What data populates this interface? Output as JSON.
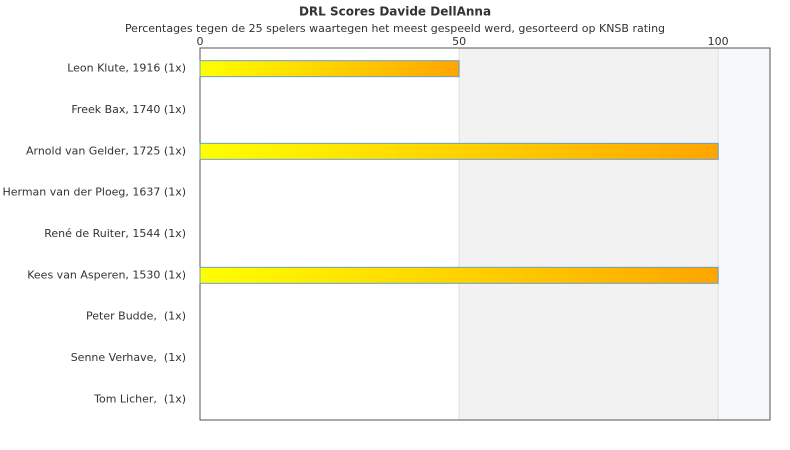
{
  "chart_data": {
    "type": "bar",
    "orientation": "horizontal",
    "title": "DRL Scores Davide DellAnna",
    "subtitle": "Percentages tegen de 25 spelers waartegen het meest gespeeld werd, gesorteerd op KNSB rating",
    "categories": [
      "Leon Klute, 1916 (1x)",
      "Freek Bax, 1740 (1x)",
      "Arnold van Gelder, 1725 (1x)",
      "Herman van der Ploeg, 1637 (1x)",
      "René de Ruiter, 1544 (1x)",
      "Kees van Asperen, 1530 (1x)",
      "Peter Budde,  (1x)",
      "Senne Verhave,  (1x)",
      "Tom Licher,  (1x)"
    ],
    "values": [
      50,
      0,
      100,
      0,
      0,
      100,
      0,
      0,
      0
    ],
    "gradient": [
      "#ffff00",
      "#ffa500"
    ],
    "xlim": [
      0,
      110
    ],
    "xticks": [
      0,
      50,
      100
    ],
    "grid": true
  }
}
